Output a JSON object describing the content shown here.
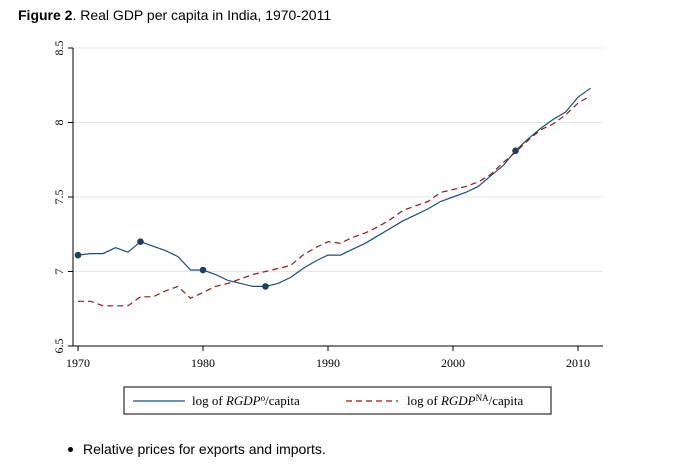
{
  "figure": {
    "label": "Figure 2",
    "title": ". Real GDP per capita in India, 1970-2011"
  },
  "chart_data": {
    "type": "line",
    "title": "Figure 2. Real GDP per capita in India, 1970-2011",
    "xlabel": "",
    "ylabel": "",
    "xlim": [
      1969.6,
      2012
    ],
    "ylim": [
      6.5,
      8.5
    ],
    "x_ticks": [
      "1970",
      "1980",
      "1990",
      "2000",
      "2010"
    ],
    "y_ticks": [
      "6.5",
      "7",
      "7.5",
      "8",
      "8.5"
    ],
    "grid": "horizontal",
    "legend_placement": "bottom",
    "series": [
      {
        "name": "log of RGDPo/capita",
        "legend_parts": [
          "log of ",
          "RGDP",
          "o",
          "/capita"
        ],
        "color": "#1f4e79",
        "style": "solid",
        "x": [
          1970,
          1971,
          1972,
          1973,
          1974,
          1975,
          1976,
          1977,
          1978,
          1979,
          1980,
          1981,
          1982,
          1983,
          1984,
          1985,
          1986,
          1987,
          1988,
          1989,
          1990,
          1991,
          1992,
          1993,
          1994,
          1995,
          1996,
          1997,
          1998,
          1999,
          2000,
          2001,
          2002,
          2003,
          2004,
          2005,
          2006,
          2007,
          2008,
          2009,
          2010,
          2011
        ],
        "y": [
          7.11,
          7.12,
          7.12,
          7.16,
          7.13,
          7.2,
          7.17,
          7.14,
          7.1,
          7.01,
          7.01,
          6.98,
          6.94,
          6.92,
          6.9,
          6.9,
          6.92,
          6.96,
          7.02,
          7.07,
          7.11,
          7.11,
          7.15,
          7.19,
          7.24,
          7.29,
          7.34,
          7.38,
          7.42,
          7.47,
          7.5,
          7.53,
          7.57,
          7.64,
          7.71,
          7.81,
          7.89,
          7.96,
          8.02,
          8.07,
          8.17,
          8.23
        ]
      },
      {
        "name": "log of RGDPNA/capita",
        "legend_parts": [
          "log of ",
          "RGDP",
          "NA",
          "/capita"
        ],
        "color": "#8b1a1a",
        "style": "dashed",
        "x": [
          1970,
          1971,
          1972,
          1973,
          1974,
          1975,
          1976,
          1977,
          1978,
          1979,
          1980,
          1981,
          1982,
          1983,
          1984,
          1985,
          1986,
          1987,
          1988,
          1989,
          1990,
          1991,
          1992,
          1993,
          1994,
          1995,
          1996,
          1997,
          1998,
          1999,
          2000,
          2001,
          2002,
          2003,
          2004,
          2005,
          2006,
          2007,
          2008,
          2009,
          2010,
          2011
        ],
        "y": [
          6.8,
          6.8,
          6.77,
          6.77,
          6.77,
          6.83,
          6.83,
          6.87,
          6.9,
          6.82,
          6.86,
          6.9,
          6.92,
          6.95,
          6.98,
          7.0,
          7.02,
          7.04,
          7.11,
          7.16,
          7.2,
          7.19,
          7.23,
          7.26,
          7.3,
          7.35,
          7.41,
          7.44,
          7.47,
          7.53,
          7.55,
          7.57,
          7.6,
          7.65,
          7.73,
          7.8,
          7.88,
          7.95,
          7.99,
          8.05,
          8.13,
          8.18
        ]
      }
    ],
    "markers": {
      "color": "#1f3f5f",
      "points": [
        [
          1970,
          7.11
        ],
        [
          1975,
          7.2
        ],
        [
          1980,
          7.01
        ],
        [
          1985,
          6.9
        ],
        [
          2005,
          7.81
        ]
      ]
    }
  },
  "bullet": {
    "text": "Relative prices for exports and imports."
  }
}
